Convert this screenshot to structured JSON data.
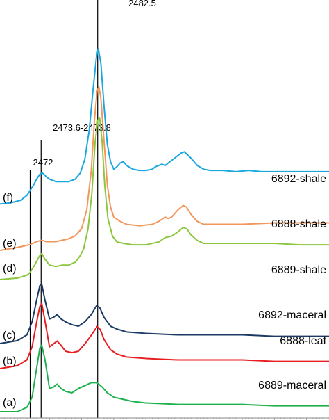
{
  "chart_data": {
    "type": "line",
    "title": "",
    "xlabel": "",
    "ylabel": "",
    "grid": false,
    "xlim": [
      2467.3,
      2518.5
    ],
    "minor_tick_step": 0.5,
    "major_tick_step": 5,
    "reference_lines": [
      {
        "x": 2472,
        "label": "2472"
      },
      {
        "x": 2473.7,
        "label": "2473.6-2473.8"
      },
      {
        "x": 2482.5,
        "label": "2482.5"
      }
    ],
    "series": [
      {
        "letter": "(f)",
        "name": "6892-shale",
        "color": "#1aa7e0",
        "offset": 5,
        "scale": 0.86,
        "points": [
          [
            2467.3,
            0.02
          ],
          [
            2469,
            0.03
          ],
          [
            2470.5,
            0.05
          ],
          [
            2471.5,
            0.09
          ],
          [
            2472,
            0.13
          ],
          [
            2472.5,
            0.17
          ],
          [
            2473,
            0.22
          ],
          [
            2473.5,
            0.26
          ],
          [
            2473.9,
            0.27
          ],
          [
            2474.5,
            0.24
          ],
          [
            2475,
            0.22
          ],
          [
            2476,
            0.2
          ],
          [
            2477,
            0.2
          ],
          [
            2478,
            0.2
          ],
          [
            2479,
            0.22
          ],
          [
            2479.8,
            0.27
          ],
          [
            2480.5,
            0.38
          ],
          [
            2481.2,
            0.62
          ],
          [
            2481.8,
            0.95
          ],
          [
            2482.3,
            1.2
          ],
          [
            2482.6,
            1.27
          ],
          [
            2483,
            1.15
          ],
          [
            2483.5,
            0.8
          ],
          [
            2484,
            0.5
          ],
          [
            2484.5,
            0.36
          ],
          [
            2485,
            0.3
          ],
          [
            2485.5,
            0.32
          ],
          [
            2486,
            0.35
          ],
          [
            2486.5,
            0.36
          ],
          [
            2487,
            0.33
          ],
          [
            2488,
            0.3
          ],
          [
            2489,
            0.29
          ],
          [
            2490,
            0.29
          ],
          [
            2491,
            0.3
          ],
          [
            2491.5,
            0.32
          ],
          [
            2492,
            0.33
          ],
          [
            2492.5,
            0.34
          ],
          [
            2493,
            0.33
          ],
          [
            2493.5,
            0.35
          ],
          [
            2494.5,
            0.39
          ],
          [
            2495.5,
            0.43
          ],
          [
            2496,
            0.44
          ],
          [
            2497,
            0.39
          ],
          [
            2498,
            0.33
          ],
          [
            2499,
            0.3
          ],
          [
            2500,
            0.29
          ],
          [
            2502,
            0.29
          ],
          [
            2504,
            0.28
          ],
          [
            2506,
            0.29
          ],
          [
            2508,
            0.28
          ],
          [
            2510,
            0.28
          ],
          [
            2512,
            0.28
          ],
          [
            2515,
            0.28
          ],
          [
            2518.5,
            0.28
          ]
        ]
      },
      {
        "letter": "(e)",
        "name": "6888-shale",
        "color": "#f2975b",
        "offset": 4,
        "scale": 1,
        "points": [
          [
            2467.3,
            0.0
          ],
          [
            2470,
            0.02
          ],
          [
            2472,
            0.04
          ],
          [
            2473,
            0.06
          ],
          [
            2473.8,
            0.07
          ],
          [
            2474.5,
            0.06
          ],
          [
            2476,
            0.06
          ],
          [
            2478,
            0.08
          ],
          [
            2479,
            0.1
          ],
          [
            2480,
            0.15
          ],
          [
            2480.8,
            0.28
          ],
          [
            2481.5,
            0.55
          ],
          [
            2482,
            0.9
          ],
          [
            2482.4,
            1.1
          ],
          [
            2482.7,
            1.13
          ],
          [
            2483,
            1.05
          ],
          [
            2483.5,
            0.75
          ],
          [
            2484,
            0.45
          ],
          [
            2484.5,
            0.3
          ],
          [
            2485,
            0.23
          ],
          [
            2486,
            0.2
          ],
          [
            2487,
            0.18
          ],
          [
            2489,
            0.17
          ],
          [
            2491,
            0.18
          ],
          [
            2492,
            0.2
          ],
          [
            2493,
            0.23
          ],
          [
            2493.5,
            0.22
          ],
          [
            2494,
            0.23
          ],
          [
            2495,
            0.28
          ],
          [
            2495.8,
            0.31
          ],
          [
            2496.3,
            0.3
          ],
          [
            2497,
            0.25
          ],
          [
            2498,
            0.2
          ],
          [
            2499,
            0.18
          ],
          [
            2501,
            0.18
          ],
          [
            2505,
            0.18
          ],
          [
            2510,
            0.19
          ],
          [
            2514,
            0.19
          ],
          [
            2518.5,
            0.19
          ]
        ]
      },
      {
        "letter": "(d)",
        "name": "6889-shale",
        "color": "#8cc63f",
        "offset": 3,
        "scale": 1,
        "points": [
          [
            2467.3,
            0.0
          ],
          [
            2470,
            0.01
          ],
          [
            2471.5,
            0.03
          ],
          [
            2472,
            0.05
          ],
          [
            2472.7,
            0.1
          ],
          [
            2473.4,
            0.16
          ],
          [
            2473.8,
            0.18
          ],
          [
            2474.3,
            0.14
          ],
          [
            2475,
            0.1
          ],
          [
            2476,
            0.09
          ],
          [
            2477,
            0.1
          ],
          [
            2478,
            0.1
          ],
          [
            2479,
            0.12
          ],
          [
            2479.7,
            0.16
          ],
          [
            2480.3,
            0.21
          ],
          [
            2481,
            0.35
          ],
          [
            2481.6,
            0.6
          ],
          [
            2482.1,
            0.95
          ],
          [
            2482.5,
            1.1
          ],
          [
            2482.8,
            1.12
          ],
          [
            2483.2,
            0.95
          ],
          [
            2483.6,
            0.65
          ],
          [
            2484.1,
            0.42
          ],
          [
            2484.8,
            0.3
          ],
          [
            2485.5,
            0.26
          ],
          [
            2486.5,
            0.25
          ],
          [
            2488,
            0.24
          ],
          [
            2490,
            0.24
          ],
          [
            2492,
            0.26
          ],
          [
            2493,
            0.29
          ],
          [
            2494,
            0.3
          ],
          [
            2495,
            0.33
          ],
          [
            2495.8,
            0.36
          ],
          [
            2496.4,
            0.35
          ],
          [
            2497,
            0.31
          ],
          [
            2498,
            0.27
          ],
          [
            2499,
            0.25
          ],
          [
            2502,
            0.25
          ],
          [
            2506,
            0.25
          ],
          [
            2510,
            0.25
          ],
          [
            2514,
            0.24
          ],
          [
            2518.5,
            0.24
          ]
        ]
      },
      {
        "letter": "(c)",
        "name": "6892-maceral",
        "color": "#1b3a64",
        "offset": 2,
        "scale": 1,
        "points": [
          [
            2467.3,
            0.0
          ],
          [
            2470,
            0.02
          ],
          [
            2471.5,
            0.06
          ],
          [
            2472.3,
            0.15
          ],
          [
            2473,
            0.3
          ],
          [
            2473.5,
            0.4
          ],
          [
            2473.8,
            0.41
          ],
          [
            2474.3,
            0.3
          ],
          [
            2475,
            0.17
          ],
          [
            2475.6,
            0.18
          ],
          [
            2476.2,
            0.2
          ],
          [
            2476.8,
            0.17
          ],
          [
            2477.5,
            0.15
          ],
          [
            2478.5,
            0.13
          ],
          [
            2479.5,
            0.12
          ],
          [
            2480.5,
            0.15
          ],
          [
            2481.5,
            0.2
          ],
          [
            2482.3,
            0.26
          ],
          [
            2482.8,
            0.25
          ],
          [
            2483.5,
            0.18
          ],
          [
            2484.5,
            0.12
          ],
          [
            2485.5,
            0.1
          ],
          [
            2487,
            0.08
          ],
          [
            2490,
            0.07
          ],
          [
            2495,
            0.06
          ],
          [
            2500,
            0.06
          ],
          [
            2505,
            0.06
          ],
          [
            2510,
            0.05
          ],
          [
            2518.5,
            0.05
          ]
        ]
      },
      {
        "letter": "(b)",
        "name": "6888-leaf",
        "color": "#e81d1f",
        "offset": 1,
        "scale": 1,
        "points": [
          [
            2467.3,
            0.0
          ],
          [
            2470,
            0.02
          ],
          [
            2471.5,
            0.06
          ],
          [
            2472.3,
            0.15
          ],
          [
            2473,
            0.32
          ],
          [
            2473.5,
            0.43
          ],
          [
            2473.8,
            0.45
          ],
          [
            2474.3,
            0.33
          ],
          [
            2475,
            0.15
          ],
          [
            2475.6,
            0.17
          ],
          [
            2476.2,
            0.19
          ],
          [
            2476.8,
            0.16
          ],
          [
            2477.5,
            0.12
          ],
          [
            2478.5,
            0.11
          ],
          [
            2479.5,
            0.12
          ],
          [
            2480.5,
            0.17
          ],
          [
            2481.5,
            0.23
          ],
          [
            2482.4,
            0.29
          ],
          [
            2482.9,
            0.27
          ],
          [
            2483.5,
            0.2
          ],
          [
            2484.5,
            0.13
          ],
          [
            2485.5,
            0.1
          ],
          [
            2487,
            0.08
          ],
          [
            2490,
            0.07
          ],
          [
            2495,
            0.06
          ],
          [
            2500,
            0.06
          ],
          [
            2505,
            0.06
          ],
          [
            2510,
            0.05
          ],
          [
            2518.5,
            0.05
          ]
        ]
      },
      {
        "letter": "(a)",
        "name": "6889-maceral",
        "color": "#1fb14e",
        "offset": 0,
        "scale": 1,
        "points": [
          [
            2467.3,
            0.0
          ],
          [
            2470,
            0.0
          ],
          [
            2471.5,
            0.03
          ],
          [
            2472.3,
            0.1
          ],
          [
            2473,
            0.3
          ],
          [
            2473.5,
            0.44
          ],
          [
            2473.8,
            0.46
          ],
          [
            2474.3,
            0.36
          ],
          [
            2475,
            0.16
          ],
          [
            2475.6,
            0.17
          ],
          [
            2476.2,
            0.19
          ],
          [
            2476.8,
            0.16
          ],
          [
            2477.5,
            0.14
          ],
          [
            2478.5,
            0.13
          ],
          [
            2479.5,
            0.16
          ],
          [
            2480.5,
            0.18
          ],
          [
            2481.5,
            0.2
          ],
          [
            2482.4,
            0.2
          ],
          [
            2483.2,
            0.17
          ],
          [
            2484,
            0.13
          ],
          [
            2485,
            0.1
          ],
          [
            2486,
            0.09
          ],
          [
            2488,
            0.07
          ],
          [
            2490,
            0.06
          ],
          [
            2495,
            0.05
          ],
          [
            2500,
            0.05
          ],
          [
            2505,
            0.05
          ],
          [
            2510,
            0.04
          ],
          [
            2518.5,
            0.04
          ]
        ]
      }
    ]
  }
}
